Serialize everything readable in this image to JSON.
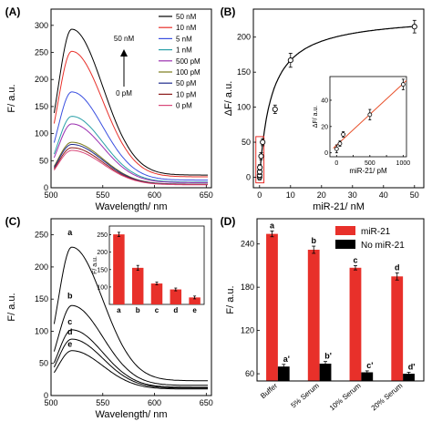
{
  "chart_data": [
    {
      "panel": "(A)",
      "type": "line",
      "xlabel": "Wavelength/ nm",
      "ylabel": "F/ a.u.",
      "xlim": [
        500,
        655
      ],
      "ylim": [
        0,
        330
      ],
      "xticks": [
        500,
        550,
        600,
        650
      ],
      "yticks": [
        0,
        50,
        100,
        150,
        200,
        250,
        300
      ],
      "peak_x": 520,
      "arrow_top_label": "50 nM",
      "arrow_bottom_label": "0 pM",
      "legend_position": "top-right",
      "series": [
        {
          "name": "50 nM",
          "peak": 293,
          "color": "#000000"
        },
        {
          "name": "10 nM",
          "peak": 252,
          "color": "#e8302a"
        },
        {
          "name": "5 nM",
          "peak": 177,
          "color": "#3a4fe0"
        },
        {
          "name": "1 nM",
          "peak": 132,
          "color": "#2aa0a8"
        },
        {
          "name": "500 pM",
          "peak": 118,
          "color": "#9b2fb0"
        },
        {
          "name": "100 pM",
          "peak": 84,
          "color": "#7a7a1a"
        },
        {
          "name": "50 pM",
          "peak": 80,
          "color": "#1f2a8c"
        },
        {
          "name": "10 pM",
          "peak": 74,
          "color": "#8c1a1a"
        },
        {
          "name": "0 pM",
          "peak": 69,
          "color": "#d9487a"
        }
      ]
    },
    {
      "panel": "(B)",
      "type": "scatter",
      "xlabel": "miR-21/ nM",
      "ylabel": "ΔF/ a.u.",
      "xlim": [
        -2,
        53
      ],
      "ylim": [
        -15,
        240
      ],
      "xticks": [
        0,
        10,
        20,
        30,
        40,
        50
      ],
      "yticks": [
        0,
        50,
        100,
        150,
        200
      ],
      "points": [
        {
          "x": 0,
          "y": 0,
          "err": 4
        },
        {
          "x": 0.01,
          "y": 3,
          "err": 4
        },
        {
          "x": 0.05,
          "y": 8,
          "err": 4
        },
        {
          "x": 0.1,
          "y": 14,
          "err": 4
        },
        {
          "x": 0.5,
          "y": 30,
          "err": 5
        },
        {
          "x": 1,
          "y": 50,
          "err": 5
        },
        {
          "x": 5,
          "y": 97,
          "err": 6
        },
        {
          "x": 10,
          "y": 167,
          "err": 10
        },
        {
          "x": 50,
          "y": 215,
          "err": 9
        }
      ],
      "inset": {
        "type": "scatter",
        "xlabel": "miR-21/ pM",
        "ylabel": "ΔF/ a.u.",
        "xlim": [
          -100,
          1050
        ],
        "ylim": [
          -3,
          58
        ],
        "xticks": [
          0,
          250,
          500,
          750,
          1000
        ],
        "yticks": [
          0,
          20,
          40
        ],
        "fit_color": "#e8502a",
        "points": [
          {
            "x": 0,
            "y": 3,
            "err": 3
          },
          {
            "x": 50,
            "y": 7,
            "err": 2
          },
          {
            "x": 100,
            "y": 14,
            "err": 2
          },
          {
            "x": 500,
            "y": 29,
            "err": 4
          },
          {
            "x": 1000,
            "y": 52,
            "err": 4
          }
        ]
      }
    },
    {
      "panel": "(C)",
      "type": "line",
      "xlabel": "Wavelength/ nm",
      "ylabel": "F/ a.u.",
      "xlim": [
        500,
        655
      ],
      "ylim": [
        0,
        275
      ],
      "xticks": [
        500,
        550,
        600,
        650
      ],
      "yticks": [
        0,
        50,
        100,
        150,
        200,
        250
      ],
      "peak_x": 520,
      "series": [
        {
          "name": "a",
          "peak": 251
        },
        {
          "name": "b",
          "peak": 150
        },
        {
          "name": "c",
          "peak": 108
        },
        {
          "name": "d",
          "peak": 92
        },
        {
          "name": "e",
          "peak": 72
        }
      ],
      "inset": {
        "type": "bar",
        "ylabel": "F/ a.u.",
        "categories": [
          "a",
          "b",
          "c",
          "d",
          "e"
        ],
        "values": [
          251,
          155,
          110,
          93,
          70
        ],
        "errors": [
          6,
          7,
          4,
          4,
          4
        ],
        "ylim": [
          50,
          275
        ],
        "yticks": [
          100,
          150,
          200,
          250
        ],
        "color": "#e8302a"
      }
    },
    {
      "panel": "(D)",
      "type": "bar",
      "ylabel": "F/ a.u.",
      "ylim": [
        50,
        275
      ],
      "yticks": [
        60,
        120,
        180,
        240
      ],
      "categories": [
        "Buffer",
        "5% Serum",
        "10% Serum",
        "20% Serum"
      ],
      "series": [
        {
          "name": "miR-21",
          "values": [
            254,
            232,
            207,
            195
          ],
          "errors": [
            4,
            5,
            3,
            5
          ],
          "labels": [
            "a",
            "b",
            "c",
            "d"
          ],
          "color": "#e8302a"
        },
        {
          "name": "No miR-21",
          "values": [
            70,
            74,
            62,
            60
          ],
          "errors": [
            3,
            3,
            2,
            2
          ],
          "labels": [
            "a'",
            "b'",
            "c'",
            "d'"
          ],
          "color": "#000000"
        }
      ],
      "legend_position": "top-right"
    }
  ]
}
